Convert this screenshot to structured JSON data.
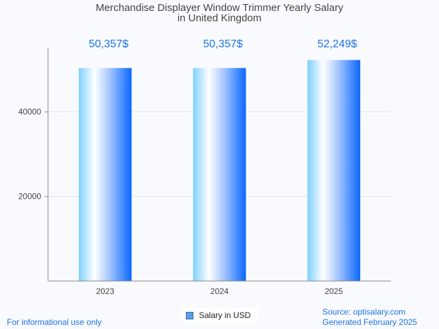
{
  "chart_data": {
    "type": "bar",
    "title": "Merchandise Displayer Window Trimmer Yearly Salary in United Kingdom",
    "title_lines": [
      "Merchandise Displayer Window Trimmer Yearly Salary",
      "in United Kingdom"
    ],
    "categories": [
      "2023",
      "2024",
      "2025"
    ],
    "values": [
      50357,
      50357,
      52249
    ],
    "data_labels": [
      "50,357$",
      "50,357$",
      "52,249$"
    ],
    "yticks": [
      20000,
      40000
    ],
    "ytick_labels": [
      "20000",
      "40000"
    ],
    "ylim": [
      0,
      55100
    ],
    "xlabel": "",
    "ylabel": "",
    "grid": true,
    "legend": {
      "label": "Salary in USD",
      "position": "bottom"
    },
    "colors": {
      "label": "#1a73e8",
      "bar_light": "#7fd0ff",
      "bar_dark": "#0a66ff"
    }
  },
  "footer": {
    "disclaimer": "For informational use only",
    "source": "Source: optisalary.com",
    "generated": "Generated February 2025"
  }
}
